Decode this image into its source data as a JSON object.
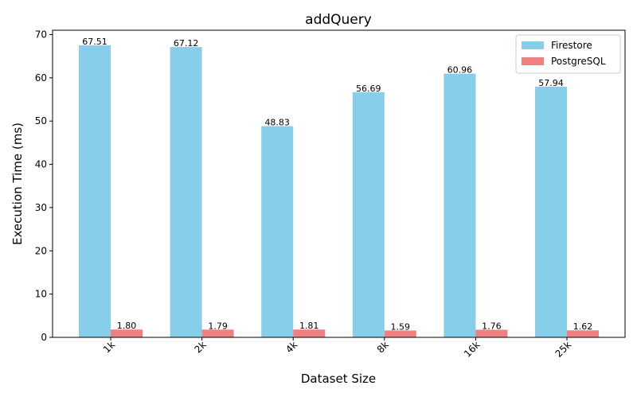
{
  "chart_data": {
    "type": "bar",
    "title": "addQuery",
    "xlabel": "Dataset Size",
    "ylabel": "Execution Time (ms)",
    "categories": [
      "1k",
      "2k",
      "4k",
      "8k",
      "16k",
      "25k"
    ],
    "series": [
      {
        "name": "Firestore",
        "color": "#87ceeb",
        "values": [
          67.51,
          67.12,
          48.83,
          56.69,
          60.96,
          57.94
        ],
        "labels": [
          "67.51",
          "67.12",
          "48.83",
          "56.69",
          "60.96",
          "57.94"
        ]
      },
      {
        "name": "PostgreSQL",
        "color": "#f08080",
        "values": [
          1.8,
          1.79,
          1.81,
          1.59,
          1.76,
          1.62
        ],
        "labels": [
          "1.80",
          "1.79",
          "1.81",
          "1.59",
          "1.76",
          "1.62"
        ]
      }
    ],
    "ylim": [
      0,
      71
    ],
    "yticks": [
      0,
      10,
      20,
      30,
      40,
      50,
      60,
      70
    ],
    "ytick_labels": [
      "0",
      "10",
      "20",
      "30",
      "40",
      "50",
      "60",
      "70"
    ],
    "xtick_rotation": 45,
    "grid": false,
    "legend_position": "top-right"
  }
}
